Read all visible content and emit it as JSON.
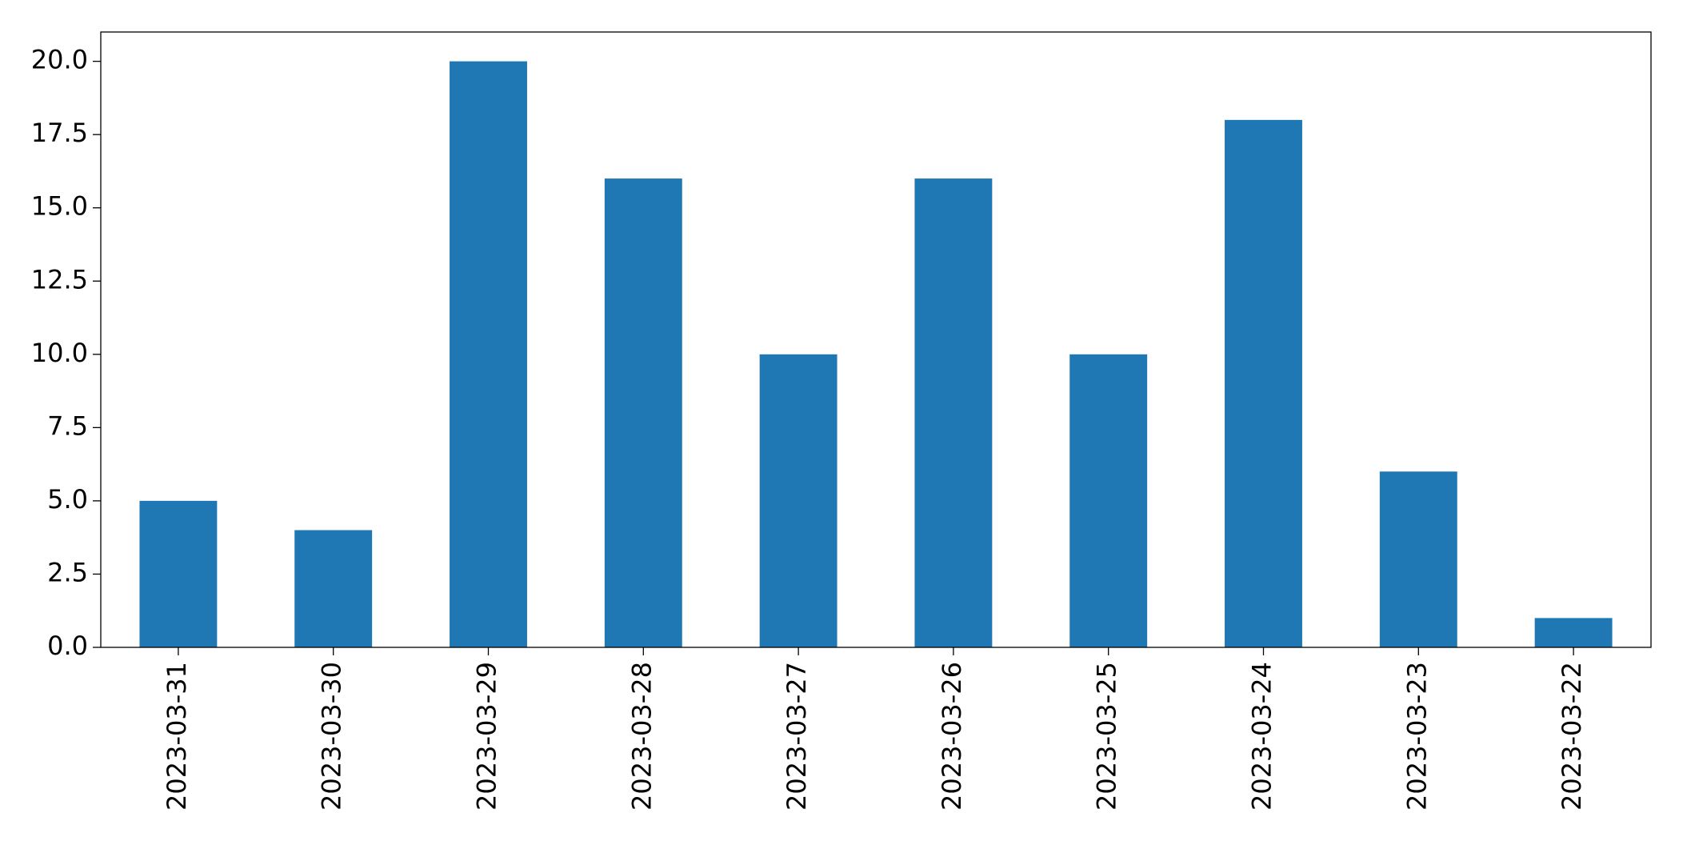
{
  "chart_data": {
    "type": "bar",
    "categories": [
      "2023-03-31",
      "2023-03-30",
      "2023-03-29",
      "2023-03-28",
      "2023-03-27",
      "2023-03-26",
      "2023-03-25",
      "2023-03-24",
      "2023-03-23",
      "2023-03-22"
    ],
    "values": [
      5,
      4,
      20,
      16,
      10,
      16,
      10,
      18,
      6,
      1
    ],
    "color": "#1f77b4",
    "ylim": [
      0,
      21
    ],
    "yticks": [
      {
        "value": 0,
        "label": "0.0"
      },
      {
        "value": 2.5,
        "label": "2.5"
      },
      {
        "value": 5,
        "label": "5.0"
      },
      {
        "value": 7.5,
        "label": "7.5"
      },
      {
        "value": 10,
        "label": "10.0"
      },
      {
        "value": 12.5,
        "label": "12.5"
      },
      {
        "value": 15,
        "label": "15.0"
      },
      {
        "value": 17.5,
        "label": "17.5"
      },
      {
        "value": 20,
        "label": "20.0"
      }
    ],
    "grid": false
  }
}
